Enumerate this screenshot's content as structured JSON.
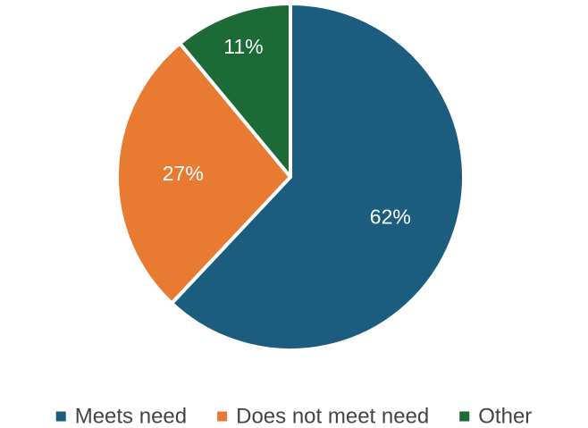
{
  "chart_data": {
    "type": "pie",
    "title": "",
    "slices": [
      {
        "name": "Meets need",
        "value": 62,
        "label": "62%",
        "color": "#1c5c7f"
      },
      {
        "name": "Does not meet need",
        "value": 27,
        "label": "27%",
        "color": "#e97a32"
      },
      {
        "name": "Other",
        "value": 11,
        "label": "11%",
        "color": "#1c6a35"
      }
    ],
    "start_angle_deg": 0,
    "direction": "clockwise",
    "legend_position": "bottom"
  }
}
